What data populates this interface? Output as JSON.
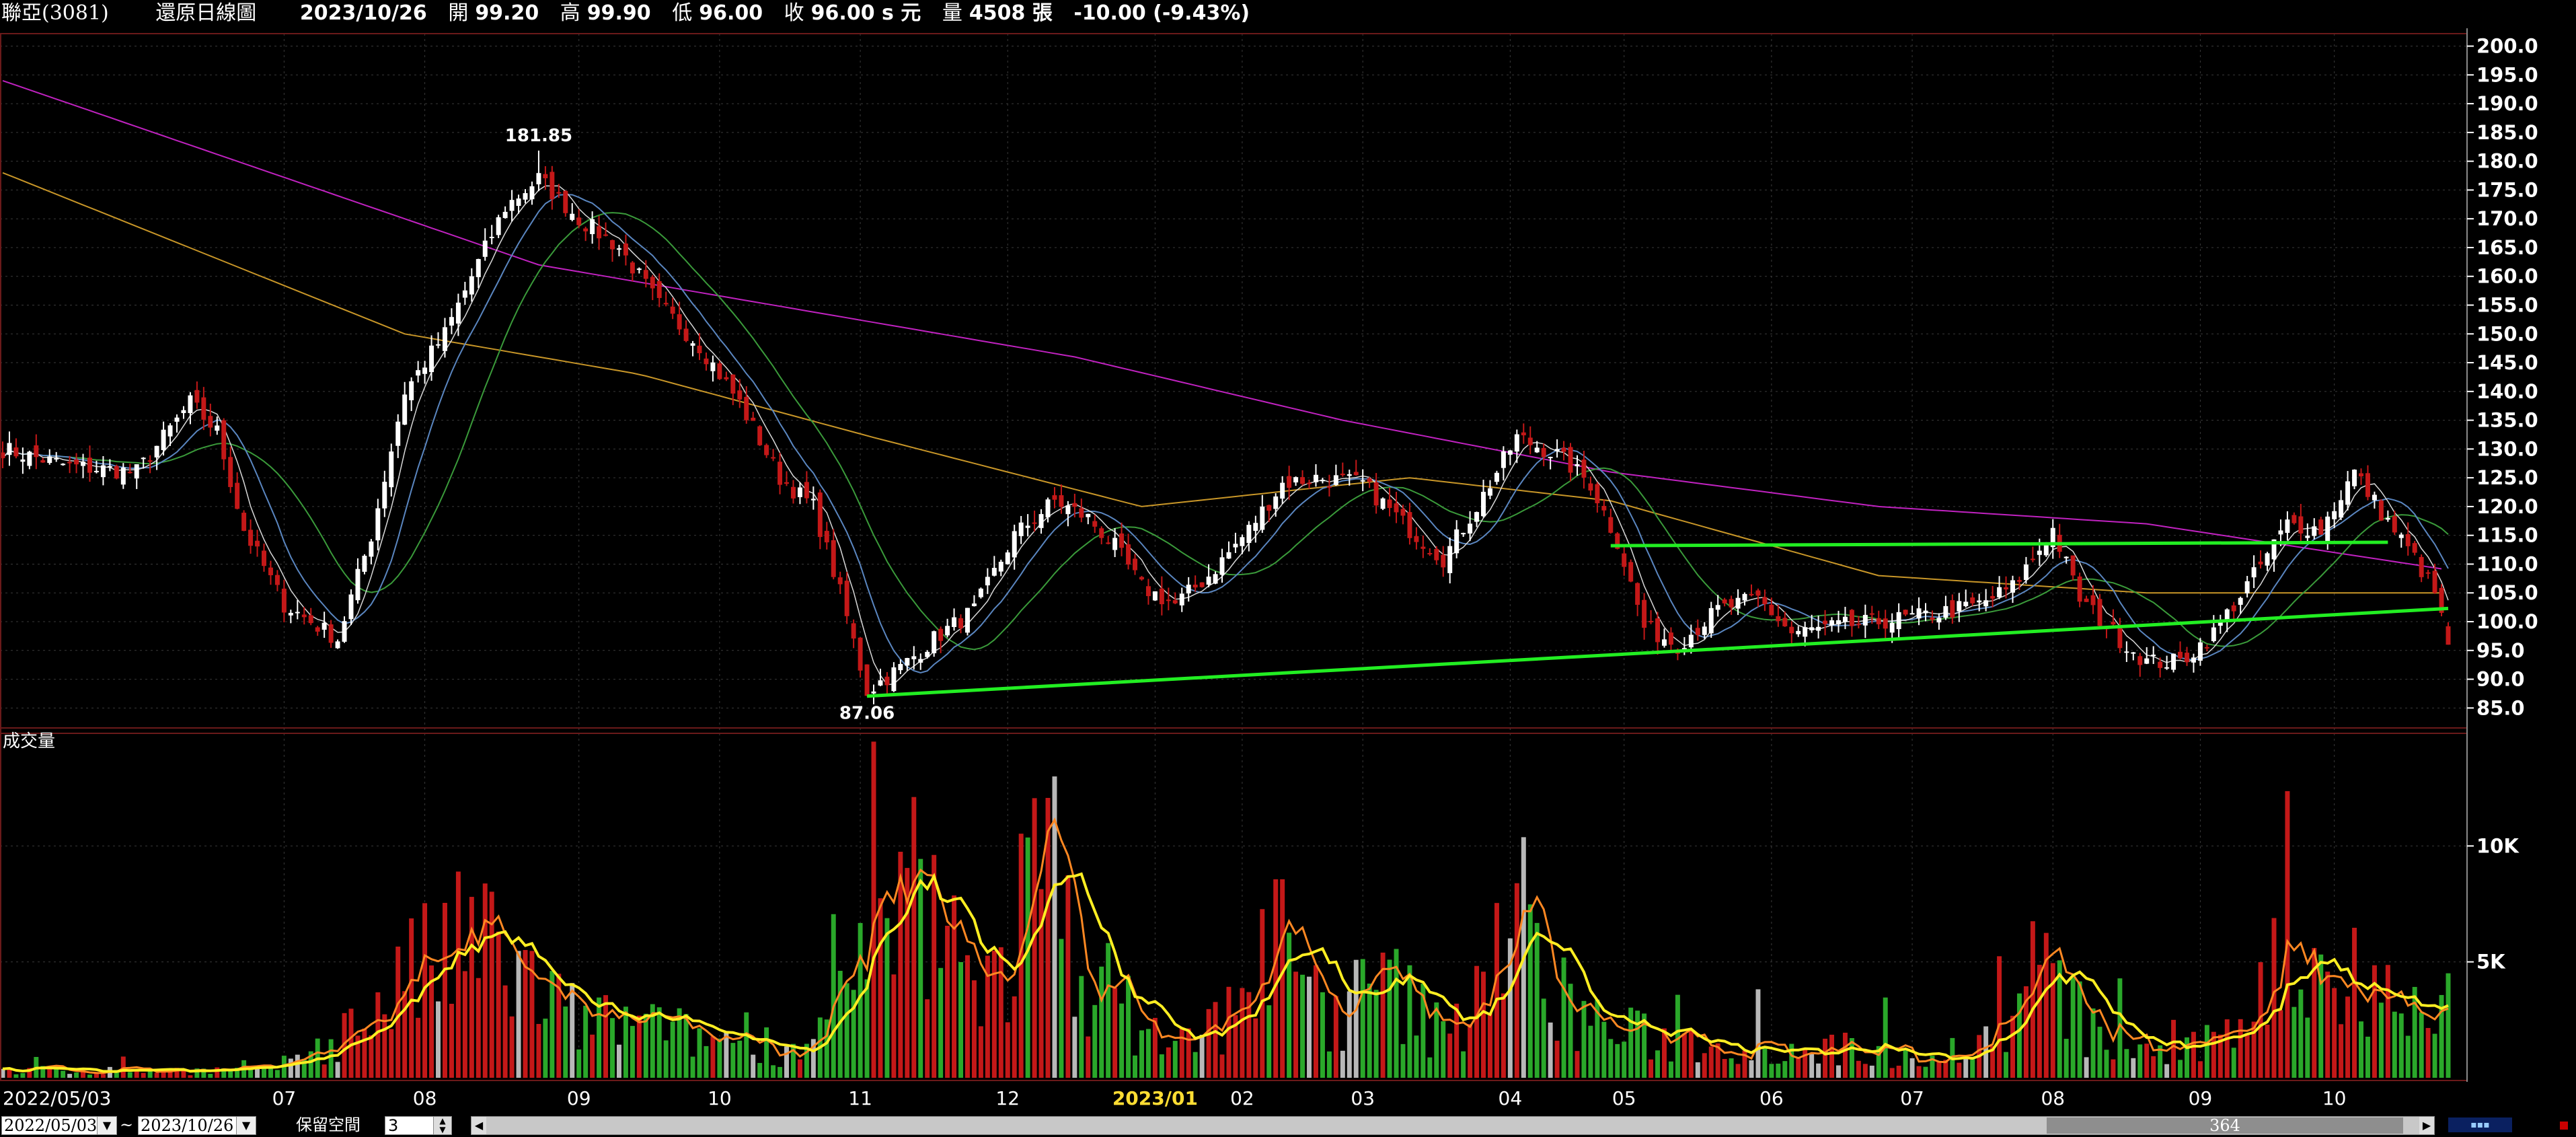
{
  "header": {
    "stock_name": "聯亞(3081)",
    "chart_type": "還原日線圖",
    "date": "2023/10/26",
    "open_label": "開",
    "open": "99.20",
    "high_label": "高",
    "high": "99.90",
    "low_label": "低",
    "low": "96.00",
    "close_label": "收",
    "close": "96.00 s 元",
    "volume_label": "量",
    "volume": "4508 張",
    "change": "-10.00 (-9.43%)"
  },
  "footer": {
    "start_date": "2022/05/03",
    "tilde": "~",
    "end_date": "2023/10/26",
    "reserve_label": "保留空間",
    "reserve_value": "3",
    "scroll_count": "364"
  },
  "colors": {
    "background": "#000000",
    "grid": "#3a3a3a",
    "up_candle": "#ffffff",
    "down_candle": "#c41818",
    "trendline": "#22ee22",
    "vol_up": "#c41818",
    "vol_down": "#2aa82a",
    "vol_flat": "#b8b8b8",
    "vol_ma_fast": "#ff8822",
    "vol_ma_slow": "#ffee22",
    "ma_200": "#c022c0",
    "ma_60": "#c89628"
  },
  "chart_data": {
    "type": "line",
    "price_panel": {
      "yticks": [
        "200.0",
        "195.0",
        "190.0",
        "185.0",
        "180.0",
        "175.0",
        "170.0",
        "165.0",
        "160.0",
        "155.0",
        "150.0",
        "145.0",
        "140.0",
        "135.0",
        "130.0",
        "125.0",
        "120.0",
        "115.0",
        "110.0",
        "105.0",
        "100.0",
        "95.0",
        "90.0",
        "85.0"
      ],
      "ylim": [
        82,
        201
      ],
      "annotations": [
        {
          "text": "181.85",
          "trading_day": 80,
          "price": 181.85
        },
        {
          "text": "87.06",
          "trading_day": 129,
          "price": 87.06
        }
      ],
      "trendlines": [
        {
          "from": [
            129,
            87.06
          ],
          "to": [
            365,
            102.3
          ]
        },
        {
          "from": [
            240,
            113.2
          ],
          "to": [
            356,
            113.8
          ]
        }
      ],
      "close_keypoints": [
        [
          0,
          130.0
        ],
        [
          10,
          127.0
        ],
        [
          20,
          126.0
        ],
        [
          28,
          138.0
        ],
        [
          32,
          133.0
        ],
        [
          36,
          116.0
        ],
        [
          42,
          103.0
        ],
        [
          50,
          97.0
        ],
        [
          55,
          115.0
        ],
        [
          60,
          140.0
        ],
        [
          66,
          150.0
        ],
        [
          70,
          160.0
        ],
        [
          75,
          172.0
        ],
        [
          80,
          177.0
        ],
        [
          86,
          170.0
        ],
        [
          92,
          165.0
        ],
        [
          98,
          155.0
        ],
        [
          104,
          148.0
        ],
        [
          110,
          138.0
        ],
        [
          116,
          125.0
        ],
        [
          121,
          120.0
        ],
        [
          125,
          105.0
        ],
        [
          129,
          88.0
        ],
        [
          134,
          92.0
        ],
        [
          139,
          97.0
        ],
        [
          145,
          102.0
        ],
        [
          151,
          115.0
        ],
        [
          157,
          121.0
        ],
        [
          162,
          118.0
        ],
        [
          166,
          113.0
        ],
        [
          170,
          106.0
        ],
        [
          175,
          103.0
        ],
        [
          180,
          108.0
        ],
        [
          186,
          116.0
        ],
        [
          191,
          124.0
        ],
        [
          196,
          125.0
        ],
        [
          203,
          124.0
        ],
        [
          210,
          116.0
        ],
        [
          215,
          111.0
        ],
        [
          220,
          120.0
        ],
        [
          226,
          132.0
        ],
        [
          232,
          129.0
        ],
        [
          237,
          124.0
        ],
        [
          241,
          114.0
        ],
        [
          245,
          99.0
        ],
        [
          250,
          96.0
        ],
        [
          256,
          102.0
        ],
        [
          262,
          104.0
        ],
        [
          267,
          98.0
        ],
        [
          273,
          99.0
        ],
        [
          280,
          100.0
        ],
        [
          287,
          101.0
        ],
        [
          295,
          103.0
        ],
        [
          300,
          106.0
        ],
        [
          306,
          116.0
        ],
        [
          310,
          104.0
        ],
        [
          316,
          97.0
        ],
        [
          320,
          93.0
        ],
        [
          325,
          93.0
        ],
        [
          330,
          98.0
        ],
        [
          336,
          108.0
        ],
        [
          341,
          117.0
        ],
        [
          346,
          116.0
        ],
        [
          351,
          126.0
        ],
        [
          355,
          119.0
        ],
        [
          360,
          111.0
        ],
        [
          363,
          105.0
        ],
        [
          365,
          96.0
        ]
      ],
      "ma_200_keypoints": [
        [
          0,
          194.0
        ],
        [
          40,
          178.0
        ],
        [
          80,
          162.0
        ],
        [
          120,
          154.0
        ],
        [
          160,
          146.0
        ],
        [
          200,
          135.0
        ],
        [
          240,
          126.0
        ],
        [
          280,
          120.0
        ],
        [
          320,
          117.0
        ],
        [
          365,
          109.0
        ]
      ],
      "ma_60_keypoints": [
        [
          0,
          178.0
        ],
        [
          60,
          150.0
        ],
        [
          95,
          143.0
        ],
        [
          130,
          132.0
        ],
        [
          170,
          120.0
        ],
        [
          210,
          125.0
        ],
        [
          240,
          121.0
        ],
        [
          280,
          108.0
        ],
        [
          320,
          105.0
        ],
        [
          365,
          105.0
        ]
      ]
    },
    "volume_panel": {
      "title": "成交量",
      "yticks": [
        "10K",
        "5K"
      ],
      "ylim": [
        0,
        14800
      ],
      "keypoints": [
        [
          0,
          300
        ],
        [
          40,
          300
        ],
        [
          44,
          800
        ],
        [
          52,
          2000
        ],
        [
          58,
          3500
        ],
        [
          66,
          5000
        ],
        [
          72,
          5500
        ],
        [
          78,
          4000
        ],
        [
          84,
          2500
        ],
        [
          92,
          2200
        ],
        [
          100,
          1800
        ],
        [
          110,
          1500
        ],
        [
          120,
          1200
        ],
        [
          125,
          3000
        ],
        [
          130,
          5000
        ],
        [
          136,
          6500
        ],
        [
          142,
          5500
        ],
        [
          148,
          4000
        ],
        [
          152,
          6500
        ],
        [
          155,
          9000
        ],
        [
          160,
          6000
        ],
        [
          166,
          3000
        ],
        [
          172,
          1800
        ],
        [
          178,
          1400
        ],
        [
          184,
          3000
        ],
        [
          188,
          4500
        ],
        [
          195,
          3500
        ],
        [
          200,
          2500
        ],
        [
          205,
          4000
        ],
        [
          210,
          3000
        ],
        [
          216,
          1500
        ],
        [
          220,
          4500
        ],
        [
          224,
          6000
        ],
        [
          230,
          4000
        ],
        [
          236,
          2500
        ],
        [
          242,
          1800
        ],
        [
          250,
          1500
        ],
        [
          260,
          1400
        ],
        [
          270,
          1200
        ],
        [
          280,
          1100
        ],
        [
          290,
          1000
        ],
        [
          298,
          1800
        ],
        [
          303,
          4500
        ],
        [
          307,
          3500
        ],
        [
          312,
          1800
        ],
        [
          318,
          1200
        ],
        [
          325,
          900
        ],
        [
          330,
          1500
        ],
        [
          336,
          3500
        ],
        [
          342,
          5000
        ],
        [
          348,
          4000
        ],
        [
          353,
          5000
        ],
        [
          358,
          3000
        ],
        [
          363,
          1800
        ],
        [
          365,
          4508
        ]
      ]
    },
    "x_axis": {
      "trading_days": 366,
      "month_labels": [
        {
          "text": "2022/05/03",
          "day": 0
        },
        {
          "text": "07",
          "day": 42
        },
        {
          "text": "08",
          "day": 63
        },
        {
          "text": "09",
          "day": 86
        },
        {
          "text": "10",
          "day": 107
        },
        {
          "text": "11",
          "day": 128
        },
        {
          "text": "12",
          "day": 150
        },
        {
          "text": "2023/01",
          "day": 172
        },
        {
          "text": "02",
          "day": 185
        },
        {
          "text": "03",
          "day": 203
        },
        {
          "text": "04",
          "day": 225
        },
        {
          "text": "05",
          "day": 242
        },
        {
          "text": "06",
          "day": 264
        },
        {
          "text": "07",
          "day": 285
        },
        {
          "text": "08",
          "day": 306
        },
        {
          "text": "09",
          "day": 328
        },
        {
          "text": "10",
          "day": 348
        }
      ]
    }
  }
}
